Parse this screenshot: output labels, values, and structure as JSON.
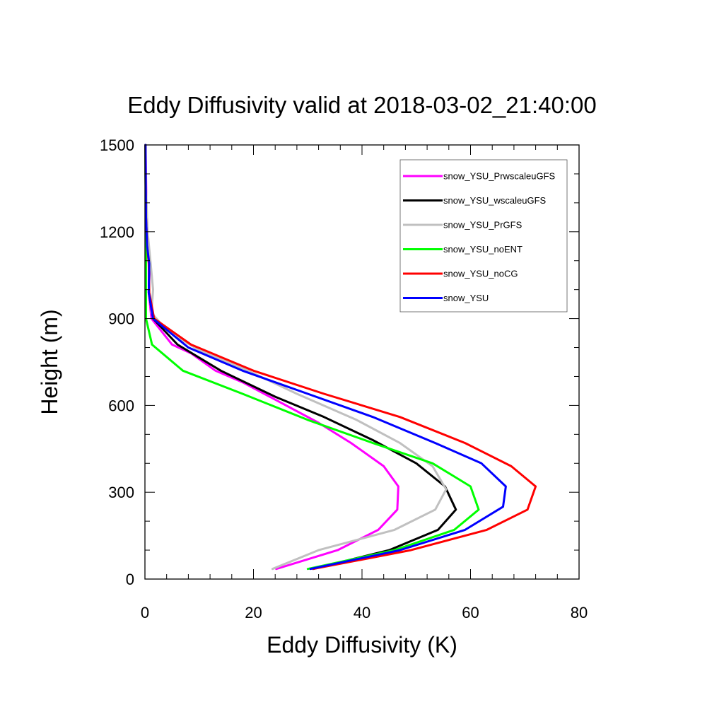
{
  "chart_data": {
    "type": "line",
    "title": "Eddy Diffusivity valid at 2018-03-02_21:40:00",
    "xlabel": "Eddy Diffusivity (K)",
    "ylabel": "Height (m)",
    "xlim": [
      0,
      80
    ],
    "ylim": [
      0,
      1500
    ],
    "xticks": [
      "0",
      "20",
      "40",
      "60",
      "80"
    ],
    "yticks": [
      "0",
      "300",
      "600",
      "900",
      "1200",
      "1500"
    ],
    "grid": false,
    "legend_position": "top-right",
    "series": [
      {
        "name": "snow_YSU_PrwscaleuGFS",
        "color": "#ff00ff",
        "points": [
          [
            24.2,
            35
          ],
          [
            35.5,
            100
          ],
          [
            43,
            170
          ],
          [
            46.5,
            240
          ],
          [
            46.7,
            320
          ],
          [
            44,
            390
          ],
          [
            38,
            470
          ],
          [
            32,
            540
          ],
          [
            24,
            620
          ],
          [
            18,
            680
          ],
          [
            13,
            720
          ],
          [
            8.5,
            780
          ],
          [
            5,
            810
          ],
          [
            1.2,
            900
          ],
          [
            0.7,
            990
          ],
          [
            0.9,
            1090
          ],
          [
            0.5,
            1150
          ],
          [
            0.3,
            1250
          ],
          [
            0.2,
            1400
          ],
          [
            0.1,
            1500
          ]
        ]
      },
      {
        "name": "snow_YSU_wscaleuGFS",
        "color": "#000000",
        "points": [
          [
            31,
            35
          ],
          [
            45,
            100
          ],
          [
            54,
            170
          ],
          [
            57.3,
            240
          ],
          [
            55.3,
            320
          ],
          [
            50,
            400
          ],
          [
            42,
            480
          ],
          [
            33,
            560
          ],
          [
            24,
            630
          ],
          [
            14,
            720
          ],
          [
            6,
            810
          ],
          [
            1.5,
            900
          ],
          [
            0.7,
            990
          ],
          [
            0.8,
            1090
          ],
          [
            0.4,
            1150
          ],
          [
            0.2,
            1250
          ],
          [
            0.1,
            1400
          ],
          [
            0.1,
            1500
          ]
        ]
      },
      {
        "name": "snow_YSU_PrGFS",
        "color": "#c0c0c0",
        "points": [
          [
            23.5,
            35
          ],
          [
            32,
            100
          ],
          [
            46,
            170
          ],
          [
            53.5,
            240
          ],
          [
            55.5,
            310
          ],
          [
            53,
            390
          ],
          [
            47,
            470
          ],
          [
            39,
            550
          ],
          [
            28,
            640
          ],
          [
            19,
            720
          ],
          [
            10,
            790
          ],
          [
            4,
            860
          ],
          [
            1.2,
            920
          ],
          [
            1.5,
            1000
          ],
          [
            1,
            1100
          ],
          [
            0.5,
            1200
          ],
          [
            0.2,
            1350
          ],
          [
            0.1,
            1500
          ]
        ]
      },
      {
        "name": "snow_YSU_noENT",
        "color": "#00ff00",
        "points": [
          [
            30,
            35
          ],
          [
            46,
            100
          ],
          [
            57,
            170
          ],
          [
            61.5,
            240
          ],
          [
            60,
            320
          ],
          [
            53,
            400
          ],
          [
            42,
            470
          ],
          [
            30,
            550
          ],
          [
            18,
            640
          ],
          [
            7,
            720
          ],
          [
            1.3,
            810
          ],
          [
            0.2,
            900
          ],
          [
            0.2,
            1000
          ],
          [
            0.2,
            1200
          ],
          [
            0.1,
            1500
          ]
        ]
      },
      {
        "name": "snow_YSU_noCG",
        "color": "#ff0000",
        "points": [
          [
            31,
            35
          ],
          [
            49,
            100
          ],
          [
            63,
            170
          ],
          [
            70.5,
            240
          ],
          [
            72,
            320
          ],
          [
            67.5,
            390
          ],
          [
            59,
            470
          ],
          [
            47,
            560
          ],
          [
            33,
            640
          ],
          [
            20,
            720
          ],
          [
            8.5,
            810
          ],
          [
            1.7,
            900
          ],
          [
            0.8,
            990
          ],
          [
            0.7,
            1090
          ],
          [
            0.4,
            1150
          ],
          [
            0.2,
            1250
          ],
          [
            0.1,
            1500
          ]
        ]
      },
      {
        "name": "snow_YSU",
        "color": "#0000ff",
        "points": [
          [
            30.5,
            35
          ],
          [
            47,
            100
          ],
          [
            59,
            170
          ],
          [
            66,
            250
          ],
          [
            66.5,
            320
          ],
          [
            62,
            400
          ],
          [
            53.5,
            470
          ],
          [
            42,
            560
          ],
          [
            30,
            640
          ],
          [
            18,
            720
          ],
          [
            8,
            800
          ],
          [
            1.5,
            900
          ],
          [
            0.7,
            990
          ],
          [
            0.8,
            1090
          ],
          [
            0.4,
            1150
          ],
          [
            0.2,
            1250
          ],
          [
            0.1,
            1500
          ]
        ]
      }
    ]
  }
}
